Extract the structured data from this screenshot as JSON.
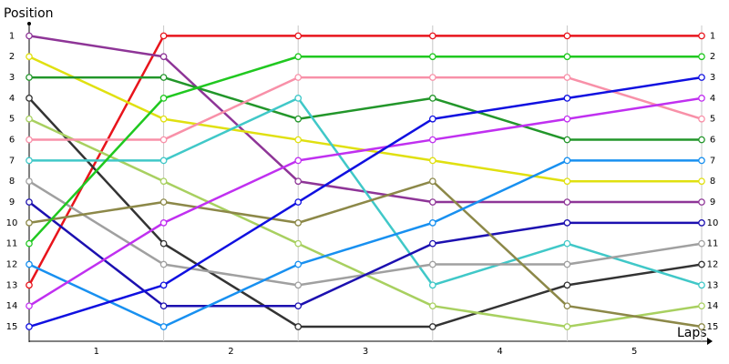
{
  "chart_data": {
    "type": "line",
    "y_label": "Position",
    "x_label": "Laps",
    "x": [
      0,
      1,
      2,
      3,
      4,
      5
    ],
    "xlim": [
      0,
      5
    ],
    "xticks": [
      {
        "value": 0.5,
        "label": "1"
      },
      {
        "value": 1.5,
        "label": "2"
      },
      {
        "value": 2.5,
        "label": "3"
      },
      {
        "value": 3.5,
        "label": "4"
      },
      {
        "value": 4.5,
        "label": "5"
      }
    ],
    "ylim": [
      15.7,
      0.5
    ],
    "yticks": [
      1,
      2,
      3,
      4,
      5,
      6,
      7,
      8,
      9,
      10,
      11,
      12,
      13,
      14,
      15
    ],
    "grid": true,
    "series": [
      {
        "color": "#e8141c",
        "values": [
          13,
          1,
          1,
          1,
          1,
          1
        ]
      },
      {
        "color": "#8e3597",
        "values": [
          1,
          2,
          8,
          9,
          9,
          9
        ]
      },
      {
        "color": "#e0e010",
        "values": [
          2,
          5,
          6,
          7,
          8,
          8
        ]
      },
      {
        "color": "#22962a",
        "values": [
          3,
          3,
          5,
          4,
          6,
          6
        ]
      },
      {
        "color": "#333333",
        "values": [
          4,
          11,
          15,
          15,
          13,
          12
        ]
      },
      {
        "color": "#a8d060",
        "values": [
          5,
          8,
          11,
          14,
          15,
          14
        ]
      },
      {
        "color": "#f890a8",
        "values": [
          6,
          6,
          3,
          3,
          3,
          5
        ]
      },
      {
        "color": "#40c8c8",
        "values": [
          7,
          7,
          4,
          13,
          11,
          13
        ]
      },
      {
        "color": "#a0a0a0",
        "values": [
          8,
          12,
          13,
          12,
          12,
          11
        ]
      },
      {
        "color": "#1c10b0",
        "values": [
          9,
          14,
          14,
          11,
          10,
          10
        ]
      },
      {
        "color": "#8c8848",
        "values": [
          10,
          9,
          10,
          8,
          14,
          15
        ]
      },
      {
        "color": "#20c820",
        "values": [
          11,
          4,
          2,
          2,
          2,
          2
        ]
      },
      {
        "color": "#1890f0",
        "values": [
          12,
          15,
          12,
          10,
          7,
          7
        ]
      },
      {
        "color": "#c030f0",
        "values": [
          14,
          10,
          7,
          6,
          5,
          4
        ]
      },
      {
        "color": "#1010e0",
        "values": [
          15,
          13,
          9,
          5,
          4,
          3
        ]
      }
    ]
  }
}
